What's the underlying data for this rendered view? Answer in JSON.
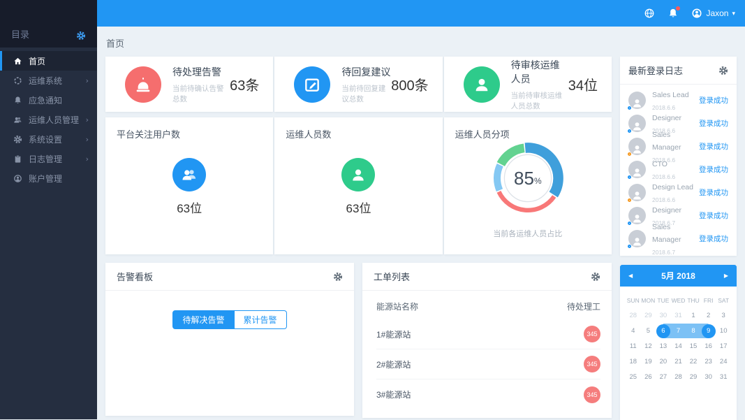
{
  "topbar": {
    "username": "Jaxon"
  },
  "sidebar": {
    "header": "目录",
    "items": [
      {
        "label": "首页",
        "icon": "home-icon",
        "active": true,
        "chevron": false
      },
      {
        "label": "运维系统",
        "icon": "target-icon",
        "active": false,
        "chevron": true
      },
      {
        "label": "应急通知",
        "icon": "bell-icon",
        "active": false,
        "chevron": false
      },
      {
        "label": "运维人员管理",
        "icon": "users-icon",
        "active": false,
        "chevron": true
      },
      {
        "label": "系统设置",
        "icon": "gear-icon",
        "active": false,
        "chevron": true
      },
      {
        "label": "日志管理",
        "icon": "clipboard-icon",
        "active": false,
        "chevron": true
      },
      {
        "label": "账户管理",
        "icon": "user-circle-icon",
        "active": false,
        "chevron": false
      }
    ]
  },
  "breadcrumb": "首页",
  "stat_cards": [
    {
      "title": "待处理告警",
      "subtitle": "当前待确认告警总数",
      "value": "63条",
      "icon": "alarm-icon",
      "color": "#f56e6e"
    },
    {
      "title": "待回复建议",
      "subtitle": "当前待回复建议总数",
      "value": "800条",
      "icon": "edit-icon",
      "color": "#2196f3"
    },
    {
      "title": "待审核运维人员",
      "subtitle": "当前待审核运维人员总数",
      "value": "34位",
      "icon": "user-icon",
      "color": "#2ecb8b"
    }
  ],
  "panels": {
    "followers": {
      "title": "平台关注用户数",
      "value": "63位",
      "icon": "users-icon",
      "color": "#2196f3"
    },
    "staff": {
      "title": "运维人员数",
      "value": "63位",
      "icon": "user-icon",
      "color": "#2ecb8b"
    },
    "breakdown": {
      "title": "运维人员分项",
      "center_number": "85",
      "center_unit": "%",
      "caption": "当前各运维人员占比"
    }
  },
  "chart_data": {
    "type": "pie",
    "title": "运维人员分项",
    "center_label": "85%",
    "caption": "当前各运维人员占比",
    "legend_position": "none",
    "start_angle_deg": -6,
    "series": [
      {
        "name": "segment-blue",
        "value": 36,
        "color": "#3f9fdb",
        "thickness": 16,
        "outer_radius": 56
      },
      {
        "name": "segment-red",
        "value": 34,
        "color": "#f87878",
        "thickness": 7,
        "outer_radius": 54
      },
      {
        "name": "segment-lightblue",
        "value": 14,
        "color": "#84c8f3",
        "thickness": 11,
        "outer_radius": 54
      },
      {
        "name": "segment-green",
        "value": 16,
        "color": "#62d290",
        "thickness": 14,
        "outer_radius": 55
      }
    ]
  },
  "alarm_board": {
    "title": "告警看板",
    "tabs": [
      "待解决告警",
      "累计告警"
    ],
    "active_tab": 0
  },
  "work_orders": {
    "title": "工单列表",
    "columns": [
      "能源站名称",
      "待处理工"
    ],
    "rows": [
      {
        "name": "1#能源站",
        "count": "345"
      },
      {
        "name": "2#能源站",
        "count": "345"
      },
      {
        "name": "3#能源站",
        "count": "345"
      }
    ]
  },
  "login_log": {
    "title": "最新登录日志",
    "success_label": "登录成功",
    "entries": [
      {
        "name": "Sales Lead",
        "date": "2018.6.6",
        "status": "blue"
      },
      {
        "name": "Designer",
        "date": "2018.6.6",
        "status": "blue"
      },
      {
        "name": "Sales Manager",
        "date": "2018.6.6",
        "status": "orange"
      },
      {
        "name": "CTO",
        "date": "2018.6.6",
        "status": "blue"
      },
      {
        "name": "Design Lead",
        "date": "2018.6.6",
        "status": "orange"
      },
      {
        "name": "Designer",
        "date": "2018.6.7",
        "status": "blue"
      },
      {
        "name": "Sales Manager",
        "date": "2018.6.7",
        "status": "blue"
      }
    ]
  },
  "calendar": {
    "title": "5月 2018",
    "prev_arrow": "◀",
    "next_arrow": "▶",
    "weekdays": [
      "SUN",
      "MON",
      "TUE",
      "WED",
      "THU",
      "FRI",
      "SAT"
    ],
    "days": [
      {
        "d": "28",
        "muted": true
      },
      {
        "d": "29",
        "muted": true
      },
      {
        "d": "30",
        "muted": true
      },
      {
        "d": "31",
        "muted": true
      },
      {
        "d": "1"
      },
      {
        "d": "2"
      },
      {
        "d": "3"
      },
      {
        "d": "4"
      },
      {
        "d": "5"
      },
      {
        "d": "6",
        "sel": "start"
      },
      {
        "d": "7",
        "sel": "in"
      },
      {
        "d": "8",
        "sel": "in"
      },
      {
        "d": "9",
        "sel": "end"
      },
      {
        "d": "10"
      },
      {
        "d": "11"
      },
      {
        "d": "12"
      },
      {
        "d": "13"
      },
      {
        "d": "14"
      },
      {
        "d": "15"
      },
      {
        "d": "16"
      },
      {
        "d": "17"
      },
      {
        "d": "18"
      },
      {
        "d": "19"
      },
      {
        "d": "20"
      },
      {
        "d": "21"
      },
      {
        "d": "22"
      },
      {
        "d": "23"
      },
      {
        "d": "24"
      },
      {
        "d": "25"
      },
      {
        "d": "26"
      },
      {
        "d": "27"
      },
      {
        "d": "28"
      },
      {
        "d": "29"
      },
      {
        "d": "30"
      },
      {
        "d": "31"
      }
    ]
  }
}
